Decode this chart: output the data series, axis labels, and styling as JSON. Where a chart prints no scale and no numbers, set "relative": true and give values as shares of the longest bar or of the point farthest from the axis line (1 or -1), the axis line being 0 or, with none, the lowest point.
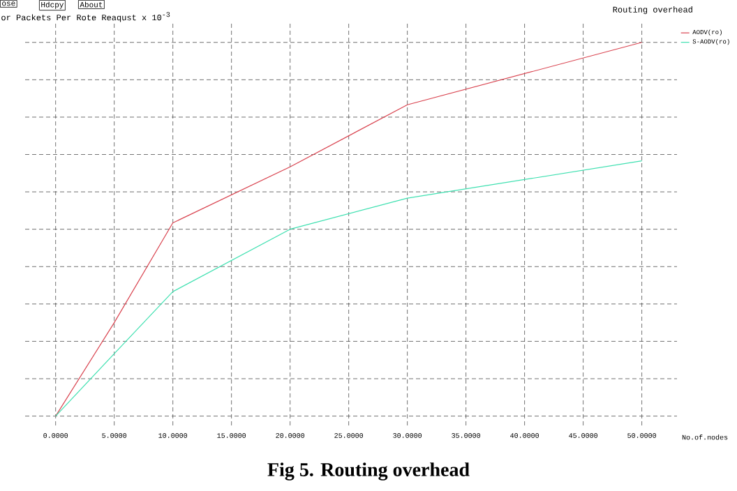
{
  "chart_data": {
    "type": "line",
    "title": "Routing overhead",
    "xlabel": "No.of.nodes",
    "ylabel": "or Packets Per Rote Reaqust x 10$^{-3}$",
    "annotations": [
      "ose",
      "Hdcpy",
      "About",
      "Fig 5. Routing overhead"
    ],
    "x": [
      0,
      5,
      10,
      20,
      30,
      50
    ],
    "series": [
      {
        "name": "AODV(ro)",
        "color": "#d9434f",
        "values": [
          0,
          0.25,
          0.517,
          0.667,
          0.833,
          1
        ]
      },
      {
        "name": "S-AODV(ro)",
        "color": "#3ee0b0",
        "values": [
          0,
          0.167,
          0.333,
          0.5,
          0.583,
          0.683
        ]
      }
    ],
    "relative": true,
    "xlim": [
      -2.6,
      53
    ],
    "xticks": [
      {
        "value": 0,
        "label": "0.0000"
      },
      {
        "value": 5,
        "label": "5.0000"
      },
      {
        "value": 10,
        "label": "10.0000"
      },
      {
        "value": 15,
        "label": "15.0000"
      },
      {
        "value": 20,
        "label": "20.0000"
      },
      {
        "value": 25,
        "label": "25.0000"
      },
      {
        "value": 30,
        "label": "30.0000"
      },
      {
        "value": 35,
        "label": "35.0000"
      },
      {
        "value": 40,
        "label": "40.0000"
      },
      {
        "value": 45,
        "label": "45.0000"
      },
      {
        "value": 50,
        "label": "50.0000"
      }
    ],
    "grid": true,
    "legend": "top right"
  }
}
